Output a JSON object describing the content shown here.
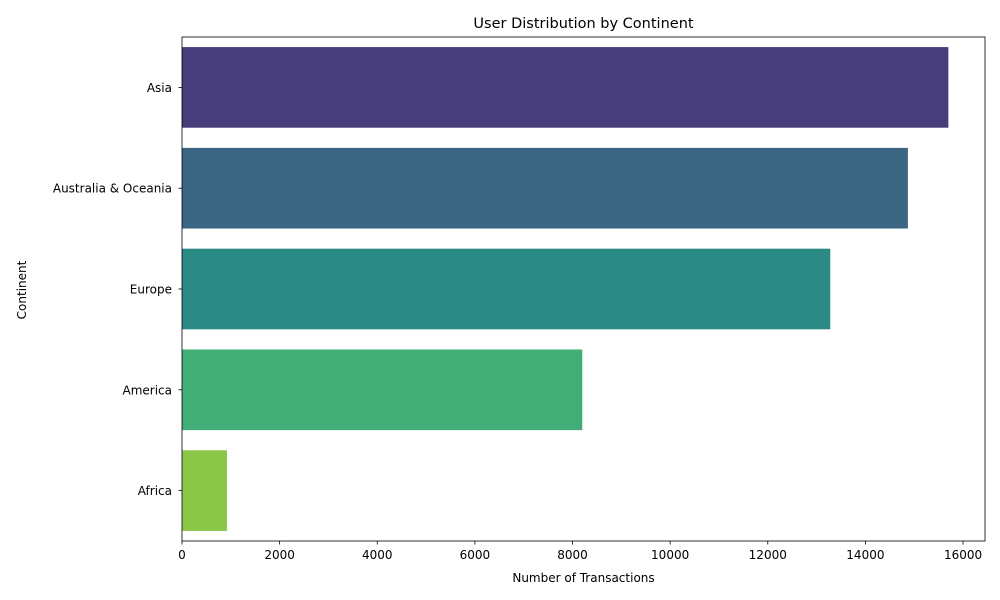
{
  "chart_data": {
    "type": "bar",
    "orientation": "horizontal",
    "title": "User Distribution by Continent",
    "xlabel": "Number of Transactions",
    "ylabel": "Continent",
    "categories": [
      "Asia",
      "Australia & Oceania",
      "Europe",
      "America",
      "Africa"
    ],
    "values": [
      15700,
      14870,
      13280,
      8200,
      920
    ],
    "colors": [
      "#483d7b",
      "#3b6582",
      "#2b8a84",
      "#42ad76",
      "#8ac749"
    ],
    "xlim": [
      0,
      16450
    ],
    "xticks": [
      0,
      2000,
      4000,
      6000,
      8000,
      10000,
      12000,
      14000,
      16000
    ],
    "grid": false,
    "legend": "none"
  }
}
